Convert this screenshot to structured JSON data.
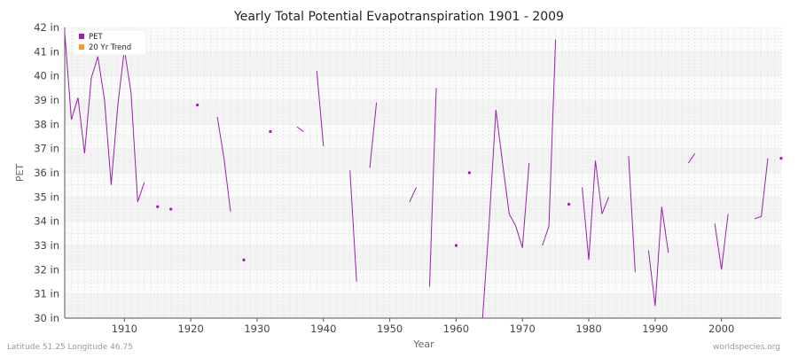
{
  "chart_data": {
    "type": "line",
    "title": "Yearly Total Potential Evapotranspiration 1901 - 2009",
    "xlabel": "Year",
    "ylabel": "PET",
    "xlim": [
      1901,
      2009
    ],
    "ylim": [
      30,
      42
    ],
    "x_ticks": [
      1910,
      1920,
      1930,
      1940,
      1950,
      1960,
      1970,
      1980,
      1990,
      2000
    ],
    "y_ticks": [
      30,
      31,
      32,
      33,
      34,
      35,
      36,
      37,
      38,
      39,
      40,
      41,
      42
    ],
    "y_tick_labels": [
      "30 in",
      "31 in",
      "32 in",
      "33 in",
      "34 in",
      "35 in",
      "36 in",
      "37 in",
      "38 in",
      "39 in",
      "40 in",
      "41 in",
      "42 in"
    ],
    "grid": true,
    "legend_position": "top-left",
    "series": [
      {
        "name": "PET",
        "color": "#9b1fae",
        "points": [
          [
            1901,
            41.8
          ],
          [
            1902,
            38.2
          ],
          [
            1903,
            39.1
          ],
          [
            1904,
            36.8
          ],
          [
            1905,
            39.9
          ],
          [
            1906,
            40.8
          ],
          [
            1907,
            39.0
          ],
          [
            1908,
            35.5
          ],
          [
            1909,
            38.8
          ],
          [
            1910,
            41.1
          ],
          [
            1911,
            39.3
          ],
          [
            1912,
            34.8
          ],
          [
            1913,
            35.6
          ],
          [
            1915,
            34.6
          ],
          [
            1917,
            34.5
          ],
          [
            1921,
            38.8
          ],
          [
            1924,
            38.3
          ],
          [
            1925,
            36.6
          ],
          [
            1926,
            34.4
          ],
          [
            1928,
            32.4
          ],
          [
            1932,
            37.7
          ],
          [
            1936,
            37.9
          ],
          [
            1937,
            37.7
          ],
          [
            1939,
            40.2
          ],
          [
            1940,
            37.1
          ],
          [
            1944,
            36.1
          ],
          [
            1945,
            31.5
          ],
          [
            1947,
            36.2
          ],
          [
            1948,
            38.9
          ],
          [
            1953,
            34.8
          ],
          [
            1954,
            35.4
          ],
          [
            1956,
            31.3
          ],
          [
            1957,
            39.5
          ],
          [
            1960,
            33.0
          ],
          [
            1962,
            36.0
          ],
          [
            1964,
            30.0
          ],
          [
            1965,
            34.0
          ],
          [
            1966,
            38.6
          ],
          [
            1967,
            36.4
          ],
          [
            1968,
            34.3
          ],
          [
            1969,
            33.8
          ],
          [
            1970,
            32.9
          ],
          [
            1971,
            36.4
          ],
          [
            1973,
            33.0
          ],
          [
            1974,
            33.8
          ],
          [
            1975,
            41.5
          ],
          [
            1977,
            34.7
          ],
          [
            1979,
            35.4
          ],
          [
            1980,
            32.4
          ],
          [
            1981,
            36.5
          ],
          [
            1982,
            34.3
          ],
          [
            1983,
            35.0
          ],
          [
            1986,
            36.7
          ],
          [
            1987,
            31.9
          ],
          [
            1989,
            32.8
          ],
          [
            1990,
            30.5
          ],
          [
            1991,
            34.6
          ],
          [
            1992,
            32.7
          ],
          [
            1995,
            36.4
          ],
          [
            1996,
            36.8
          ],
          [
            1999,
            33.9
          ],
          [
            2000,
            32.0
          ],
          [
            2001,
            34.3
          ],
          [
            2005,
            34.1
          ],
          [
            2006,
            34.2
          ],
          [
            2007,
            36.6
          ],
          [
            2009,
            36.6
          ]
        ]
      },
      {
        "name": "20 Yr Trend",
        "color": "#f0a020",
        "points": []
      }
    ]
  },
  "footer": {
    "left": "Latitude 51.25 Longitude 46.75",
    "right": "worldspecies.org"
  }
}
